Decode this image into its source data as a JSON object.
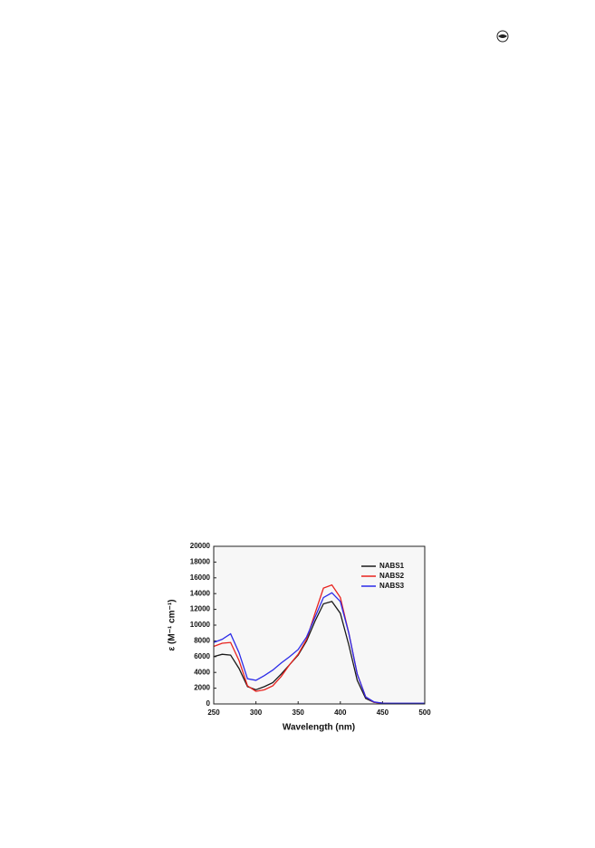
{
  "chart_data": {
    "type": "line",
    "xlabel": "Wavelength (nm)",
    "ylabel": "ε (M⁻¹ cm⁻¹)",
    "x": [
      250,
      260,
      270,
      280,
      290,
      300,
      310,
      320,
      330,
      340,
      350,
      360,
      370,
      380,
      390,
      400,
      410,
      420,
      430,
      440,
      450,
      460,
      470,
      480,
      490,
      500
    ],
    "series": [
      {
        "name": "NABS1",
        "color": "#1a1a1a",
        "values": [
          6000,
          6300,
          6200,
          4500,
          2200,
          1800,
          2200,
          2700,
          3800,
          5000,
          6200,
          8000,
          10500,
          12700,
          13000,
          11500,
          7500,
          3000,
          700,
          200,
          100,
          50,
          50,
          50,
          50,
          50
        ]
      },
      {
        "name": "NABS2",
        "color": "#e8221e",
        "values": [
          7300,
          7700,
          7800,
          5500,
          2300,
          1600,
          1800,
          2300,
          3500,
          5000,
          6300,
          8200,
          11500,
          14700,
          15100,
          13500,
          9000,
          3800,
          900,
          200,
          100,
          50,
          50,
          50,
          50,
          50
        ]
      },
      {
        "name": "NABS3",
        "color": "#2b2be8",
        "values": [
          7800,
          8200,
          8900,
          6500,
          3200,
          3000,
          3600,
          4300,
          5200,
          6000,
          6900,
          8500,
          11000,
          13500,
          14100,
          13000,
          9000,
          3800,
          900,
          250,
          100,
          80,
          80,
          80,
          80,
          80
        ]
      }
    ],
    "xlim": [
      250,
      500
    ],
    "ylim": [
      0,
      20000
    ],
    "xticks": [
      250,
      300,
      350,
      400,
      450,
      500
    ],
    "yticks": [
      0,
      2000,
      4000,
      6000,
      8000,
      10000,
      12000,
      14000,
      16000,
      18000,
      20000
    ],
    "legend": "upper right"
  }
}
